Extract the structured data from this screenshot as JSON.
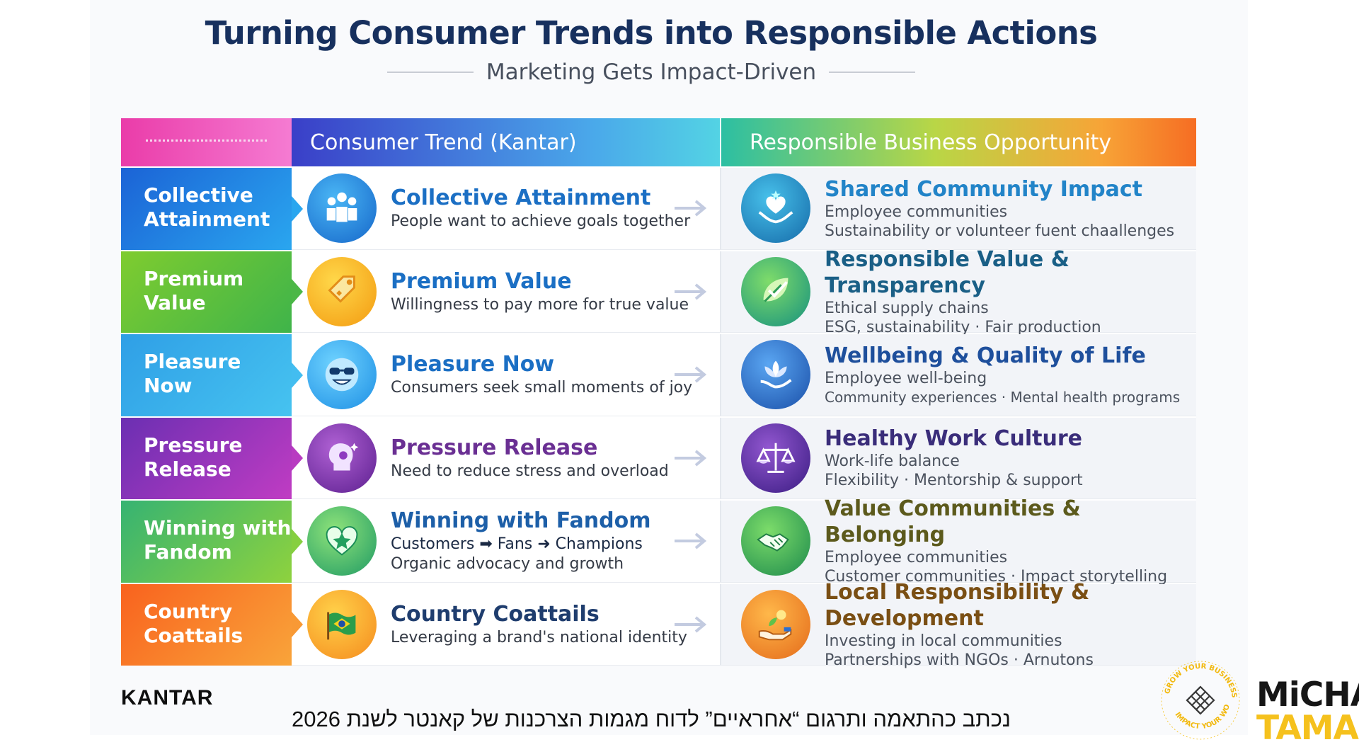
{
  "title": "Turning Consumer Trends into Responsible Actions",
  "subtitle": "Marketing Gets Impact-Driven",
  "header": {
    "trend_col": "Consumer Trend (Kantar)",
    "opportunity_col": "Responsible Business Opportunity"
  },
  "rows": [
    {
      "label": "Collective Attainment",
      "label_color": "#1f7fe0",
      "trend_title": "Collective Attainment",
      "trend_title_color": "#1b6fc4",
      "trend_desc": "People want to achieve goals together",
      "trend_icon": "people-group-icon",
      "opp_title": "Shared Community Impact",
      "opp_title_color": "#2284c8",
      "opp_lines": [
        "Employee communities",
        "Sustainability or volunteer fuent chaallenges"
      ],
      "opp_icon": "heart-hands-icon"
    },
    {
      "label": "Premium Value",
      "label_color": "#63bd36",
      "trend_title": "Premium Value",
      "trend_title_color": "#1b6fc4",
      "trend_desc": "Willingness to pay more for true value",
      "trend_icon": "price-tag-icon",
      "opp_title": "Responsible Value & Transparency",
      "opp_title_color": "#1a5f86",
      "opp_lines": [
        "Ethical supply chains",
        "ESG, sustainability · Fair production"
      ],
      "opp_icon": "leaf-check-icon"
    },
    {
      "label": "Pleasure Now",
      "label_color": "#2aa8e6",
      "trend_title": "Pleasure Now",
      "trend_title_color": "#1b6fc4",
      "trend_desc": "Consumers seek small moments of joy",
      "trend_icon": "smiley-sunglasses-icon",
      "opp_title": "Wellbeing & Quality of Life",
      "opp_title_color": "#1e4f9c",
      "opp_lines": [
        "Employee well-being",
        "Community experiences · Mental health programs"
      ],
      "opp_icon": "lotus-hand-icon"
    },
    {
      "label": "Pressure Release",
      "label_color": "#8e35b8",
      "trend_title": "Pressure Release",
      "trend_title_color": "#6a2f93",
      "trend_desc": "Need to reduce stress and overload",
      "trend_icon": "head-gear-icon",
      "opp_title": "Healthy Work Culture",
      "opp_title_color": "#3a2d7a",
      "opp_lines": [
        "Work-life balance",
        "Flexibility · Mentorship & support"
      ],
      "opp_icon": "balance-scale-icon"
    },
    {
      "label": "Winning with Fandom",
      "label_color": "#4dbb5a",
      "trend_title": "Winning with Fandom",
      "trend_title_color": "#1d5fa8",
      "trend_desc": "Customers ➡ Fans ➜ Champions",
      "trend_desc2": "Organic advocacy and growth",
      "trend_icon": "heart-star-icon",
      "opp_title": "Value Communities & Belonging",
      "opp_title_color": "#5c5a1c",
      "opp_lines": [
        "Employee communities",
        "Customer communities · Impact storytelling"
      ],
      "opp_icon": "handshake-icon"
    },
    {
      "label": "Country Coattails",
      "label_color": "#f4802a",
      "trend_title": "Country Coattails",
      "trend_title_color": "#1f3d6e",
      "trend_desc": "Leveraging a brand's national identity",
      "trend_icon": "flag-icon",
      "opp_title": "Local Responsibility & Development",
      "opp_title_color": "#7a4f14",
      "opp_lines": [
        "Investing in local communities",
        "Partnerships with NGOs · Arnutons"
      ],
      "opp_icon": "hand-plant-icon"
    }
  ],
  "footer": {
    "kantar_logo": "KANTAR",
    "caption": "נכתב כהתאמה ותרגום “אחראיים” לדוח מגמות הצרכנות של קאנטר לשנת 2026",
    "seal_text_top": "GROW YOUR BUSINESS",
    "seal_text_bottom": "IMPACT YOUR WORLD",
    "brand_line1": "MiCHAL",
    "brand_line2": "TAMAM"
  },
  "colors": {
    "title": "#17305e",
    "brand_yellow": "#f5c11d"
  }
}
